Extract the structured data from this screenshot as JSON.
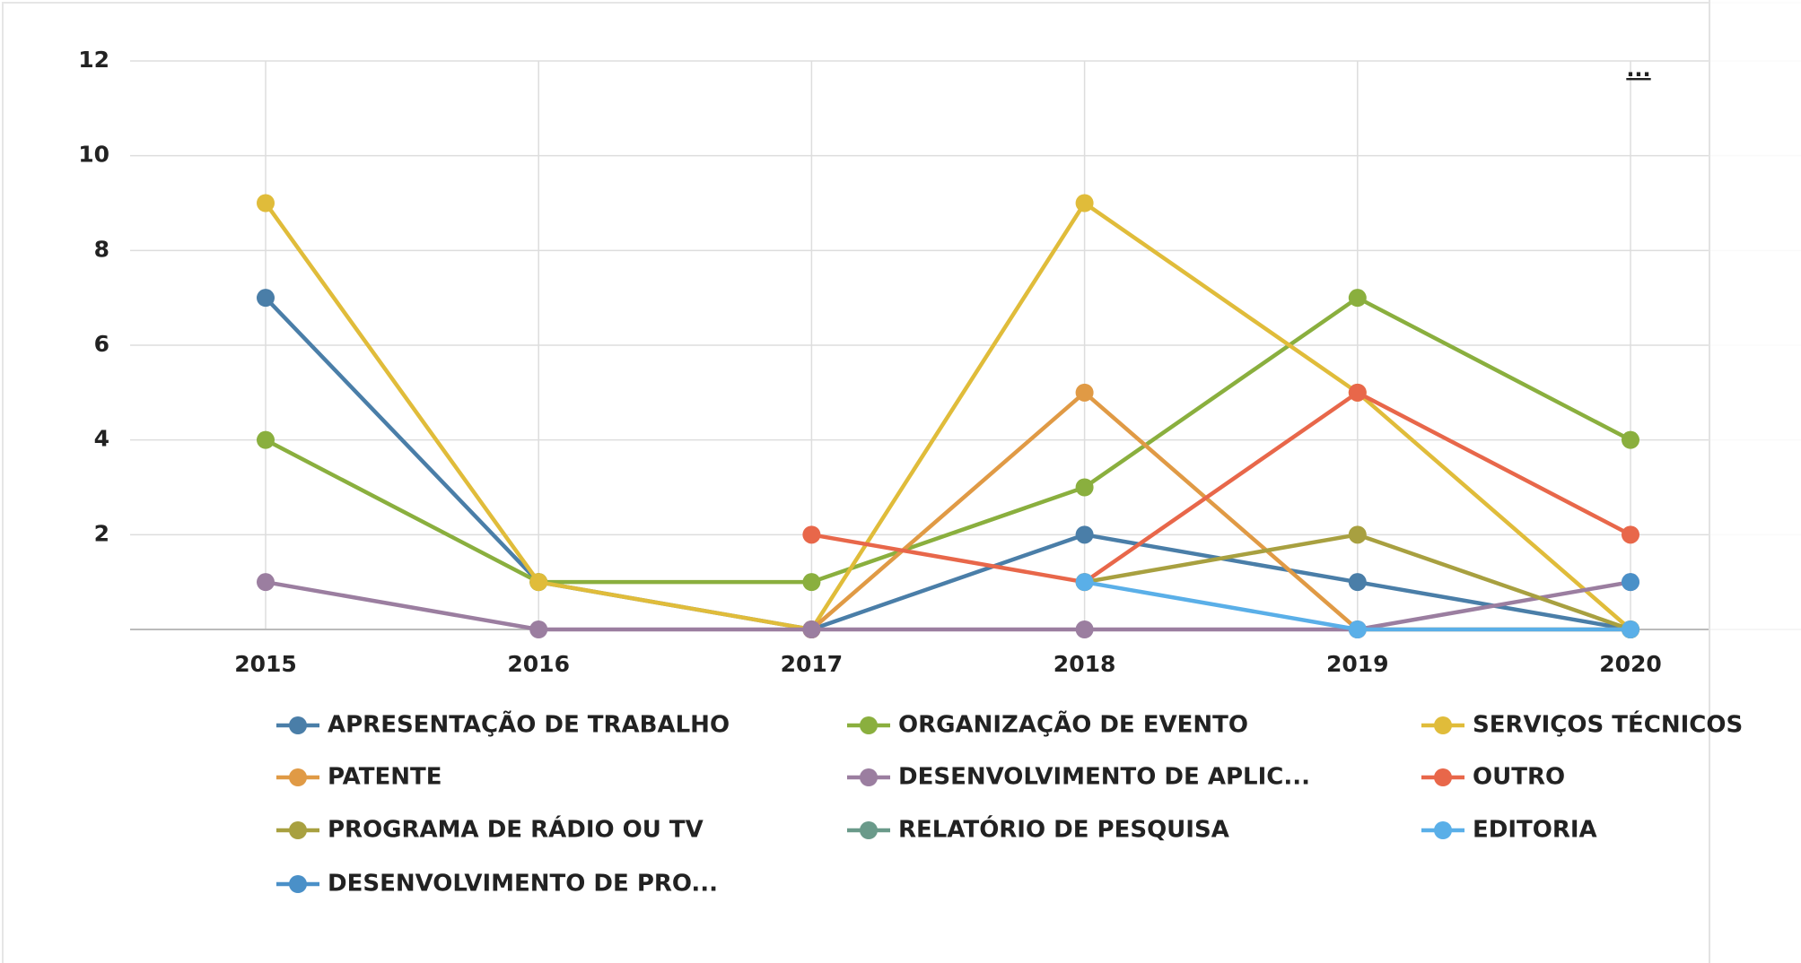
{
  "chart_data": {
    "type": "line",
    "categories": [
      "2015",
      "2016",
      "2017",
      "2018",
      "2019",
      "2020"
    ],
    "ylim": [
      0,
      12
    ],
    "yticks": [
      2,
      4,
      6,
      8,
      10,
      12
    ],
    "grid": true,
    "menu_label": "...",
    "series": [
      {
        "name": "APRESENTAÇÃO DE TRABALHO",
        "color": "#4a7ea8",
        "values": [
          7,
          1,
          0,
          2,
          1,
          0
        ]
      },
      {
        "name": "ORGANIZAÇÃO DE EVENTO",
        "color": "#8aaf3e",
        "values": [
          4,
          1,
          1,
          3,
          7,
          4
        ]
      },
      {
        "name": "SERVIÇOS TÉCNICOS",
        "color": "#e0bc3a",
        "values": [
          9,
          1,
          0,
          9,
          5,
          0
        ]
      },
      {
        "name": "PATENTE",
        "color": "#e09a45",
        "values": [
          null,
          null,
          0,
          5,
          0,
          0
        ]
      },
      {
        "name": "DESENVOLVIMENTO DE APLIC...",
        "color": "#9b7ea0",
        "values": [
          1,
          0,
          0,
          0,
          0,
          1
        ]
      },
      {
        "name": "OUTRO",
        "color": "#e8674a",
        "values": [
          null,
          null,
          2,
          1,
          5,
          2
        ]
      },
      {
        "name": "PROGRAMA DE RÁDIO OU TV",
        "color": "#a8a040",
        "values": [
          null,
          null,
          null,
          1,
          2,
          0
        ]
      },
      {
        "name": "RELATÓRIO DE PESQUISA",
        "color": "#6a9a8a",
        "values": [
          null,
          null,
          null,
          null,
          null,
          null
        ]
      },
      {
        "name": "EDITORIA",
        "color": "#5aafe8",
        "values": [
          null,
          null,
          null,
          1,
          0,
          0
        ]
      },
      {
        "name": "DESENVOLVIMENTO DE PRO...",
        "color": "#4a90c8",
        "values": [
          null,
          null,
          null,
          null,
          null,
          1
        ]
      }
    ]
  }
}
